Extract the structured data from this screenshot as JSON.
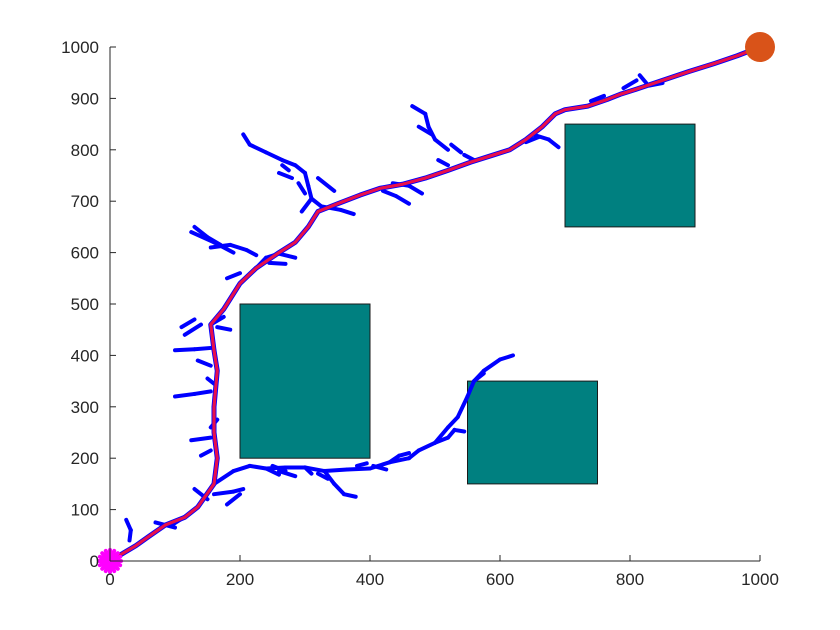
{
  "chart_data": {
    "type": "scatter",
    "title": "",
    "xlabel": "",
    "ylabel": "",
    "xlim": [
      0,
      1000
    ],
    "ylim": [
      0,
      1000
    ],
    "x_ticks": [
      0,
      200,
      400,
      600,
      800,
      1000
    ],
    "y_ticks": [
      0,
      100,
      200,
      300,
      400,
      500,
      600,
      700,
      800,
      900,
      1000
    ],
    "grid": false,
    "colors": {
      "tree": "#0000ff",
      "path": "#e8104a",
      "obstacle": "#008080",
      "start": "#ff00ff",
      "goal": "#d95319"
    },
    "start": [
      0,
      0
    ],
    "goal": [
      1000,
      1000
    ],
    "obstacles": [
      {
        "x": 200,
        "y": 200,
        "width": 200,
        "height": 300
      },
      {
        "x": 550,
        "y": 150,
        "width": 200,
        "height": 200
      },
      {
        "x": 700,
        "y": 650,
        "width": 200,
        "height": 200
      }
    ],
    "path": [
      [
        0,
        0
      ],
      [
        20,
        15
      ],
      [
        40,
        30
      ],
      [
        60,
        48
      ],
      [
        85,
        70
      ],
      [
        115,
        85
      ],
      [
        135,
        105
      ],
      [
        160,
        150
      ],
      [
        165,
        200
      ],
      [
        160,
        250
      ],
      [
        160,
        300
      ],
      [
        165,
        370
      ],
      [
        160,
        410
      ],
      [
        155,
        460
      ],
      [
        175,
        490
      ],
      [
        200,
        540
      ],
      [
        225,
        570
      ],
      [
        260,
        600
      ],
      [
        285,
        620
      ],
      [
        305,
        650
      ],
      [
        320,
        680
      ],
      [
        350,
        695
      ],
      [
        385,
        712
      ],
      [
        415,
        725
      ],
      [
        450,
        733
      ],
      [
        485,
        745
      ],
      [
        520,
        760
      ],
      [
        555,
        776
      ],
      [
        590,
        790
      ],
      [
        615,
        800
      ],
      [
        640,
        820
      ],
      [
        665,
        845
      ],
      [
        685,
        870
      ],
      [
        700,
        878
      ],
      [
        735,
        885
      ],
      [
        765,
        898
      ],
      [
        785,
        908
      ],
      [
        810,
        918
      ],
      [
        850,
        935
      ],
      [
        890,
        952
      ],
      [
        930,
        968
      ],
      [
        965,
        983
      ],
      [
        1000,
        1000
      ]
    ],
    "tree_edges": [
      [
        [
          25,
          80
        ],
        [
          32,
          60
        ]
      ],
      [
        [
          32,
          60
        ],
        [
          30,
          40
        ]
      ],
      [
        [
          70,
          75
        ],
        [
          100,
          65
        ]
      ],
      [
        [
          95,
          70
        ],
        [
          120,
          90
        ]
      ],
      [
        [
          130,
          140
        ],
        [
          150,
          120
        ]
      ],
      [
        [
          160,
          130
        ],
        [
          190,
          135
        ]
      ],
      [
        [
          190,
          135
        ],
        [
          205,
          140
        ]
      ],
      [
        [
          180,
          110
        ],
        [
          200,
          130
        ]
      ],
      [
        [
          160,
          150
        ],
        [
          190,
          175
        ]
      ],
      [
        [
          190,
          175
        ],
        [
          215,
          185
        ]
      ],
      [
        [
          215,
          185
        ],
        [
          240,
          180
        ]
      ],
      [
        [
          240,
          180
        ],
        [
          270,
          182
        ]
      ],
      [
        [
          270,
          182
        ],
        [
          300,
          182
        ]
      ],
      [
        [
          300,
          182
        ],
        [
          330,
          175
        ]
      ],
      [
        [
          330,
          175
        ],
        [
          365,
          178
        ]
      ],
      [
        [
          365,
          178
        ],
        [
          400,
          180
        ]
      ],
      [
        [
          400,
          180
        ],
        [
          430,
          192
        ]
      ],
      [
        [
          430,
          192
        ],
        [
          460,
          200
        ]
      ],
      [
        [
          460,
          200
        ],
        [
          475,
          215
        ]
      ],
      [
        [
          475,
          215
        ],
        [
          500,
          230
        ]
      ],
      [
        [
          500,
          230
        ],
        [
          520,
          240
        ]
      ],
      [
        [
          520,
          240
        ],
        [
          530,
          255
        ]
      ],
      [
        [
          530,
          255
        ],
        [
          545,
          252
        ]
      ],
      [
        [
          500,
          230
        ],
        [
          520,
          260
        ]
      ],
      [
        [
          520,
          260
        ],
        [
          535,
          280
        ]
      ],
      [
        [
          535,
          280
        ],
        [
          550,
          320
        ]
      ],
      [
        [
          550,
          320
        ],
        [
          560,
          350
        ]
      ],
      [
        [
          560,
          350
        ],
        [
          575,
          370
        ]
      ],
      [
        [
          575,
          370
        ],
        [
          600,
          392
        ]
      ],
      [
        [
          600,
          392
        ],
        [
          620,
          400
        ]
      ],
      [
        [
          560,
          350
        ],
        [
          575,
          365
        ]
      ],
      [
        [
          250,
          185
        ],
        [
          270,
          175
        ]
      ],
      [
        [
          260,
          175
        ],
        [
          285,
          165
        ]
      ],
      [
        [
          320,
          170
        ],
        [
          335,
          160
        ]
      ],
      [
        [
          330,
          175
        ],
        [
          345,
          150
        ]
      ],
      [
        [
          345,
          150
        ],
        [
          360,
          130
        ]
      ],
      [
        [
          360,
          130
        ],
        [
          378,
          125
        ]
      ],
      [
        [
          380,
          185
        ],
        [
          395,
          190
        ]
      ],
      [
        [
          430,
          192
        ],
        [
          445,
          205
        ]
      ],
      [
        [
          445,
          205
        ],
        [
          460,
          210
        ]
      ],
      [
        [
          405,
          185
        ],
        [
          425,
          178
        ]
      ],
      [
        [
          240,
          180
        ],
        [
          260,
          168
        ]
      ],
      [
        [
          300,
          182
        ],
        [
          310,
          170
        ]
      ],
      [
        [
          100,
          320
        ],
        [
          130,
          325
        ]
      ],
      [
        [
          130,
          325
        ],
        [
          155,
          330
        ]
      ],
      [
        [
          100,
          410
        ],
        [
          130,
          412
        ]
      ],
      [
        [
          130,
          412
        ],
        [
          160,
          415
        ]
      ],
      [
        [
          115,
          440
        ],
        [
          140,
          460
        ]
      ],
      [
        [
          110,
          455
        ],
        [
          130,
          470
        ]
      ],
      [
        [
          135,
          390
        ],
        [
          155,
          380
        ]
      ],
      [
        [
          150,
          355
        ],
        [
          160,
          345
        ]
      ],
      [
        [
          125,
          235
        ],
        [
          155,
          240
        ]
      ],
      [
        [
          140,
          205
        ],
        [
          155,
          215
        ]
      ],
      [
        [
          155,
          260
        ],
        [
          165,
          275
        ]
      ],
      [
        [
          155,
          460
        ],
        [
          175,
          475
        ]
      ],
      [
        [
          165,
          455
        ],
        [
          185,
          450
        ]
      ],
      [
        [
          130,
          650
        ],
        [
          150,
          630
        ]
      ],
      [
        [
          150,
          630
        ],
        [
          170,
          615
        ]
      ],
      [
        [
          125,
          640
        ],
        [
          160,
          620
        ]
      ],
      [
        [
          160,
          620
        ],
        [
          190,
          600
        ]
      ],
      [
        [
          155,
          610
        ],
        [
          185,
          615
        ]
      ],
      [
        [
          185,
          615
        ],
        [
          210,
          605
        ]
      ],
      [
        [
          210,
          605
        ],
        [
          225,
          595
        ]
      ],
      [
        [
          180,
          550
        ],
        [
          200,
          560
        ]
      ],
      [
        [
          225,
          570
        ],
        [
          240,
          590
        ]
      ],
      [
        [
          240,
          590
        ],
        [
          260,
          598
        ]
      ],
      [
        [
          260,
          598
        ],
        [
          285,
          590
        ]
      ],
      [
        [
          245,
          580
        ],
        [
          270,
          578
        ]
      ],
      [
        [
          205,
          830
        ],
        [
          215,
          810
        ]
      ],
      [
        [
          215,
          810
        ],
        [
          240,
          795
        ]
      ],
      [
        [
          240,
          795
        ],
        [
          265,
          780
        ]
      ],
      [
        [
          265,
          780
        ],
        [
          285,
          770
        ]
      ],
      [
        [
          285,
          770
        ],
        [
          300,
          755
        ]
      ],
      [
        [
          300,
          755
        ],
        [
          305,
          730
        ]
      ],
      [
        [
          305,
          730
        ],
        [
          310,
          705
        ]
      ],
      [
        [
          310,
          705
        ],
        [
          295,
          680
        ]
      ],
      [
        [
          260,
          755
        ],
        [
          280,
          745
        ]
      ],
      [
        [
          265,
          770
        ],
        [
          275,
          760
        ]
      ],
      [
        [
          290,
          735
        ],
        [
          300,
          715
        ]
      ],
      [
        [
          320,
          745
        ],
        [
          345,
          720
        ]
      ],
      [
        [
          310,
          705
        ],
        [
          325,
          690
        ]
      ],
      [
        [
          325,
          690
        ],
        [
          355,
          683
        ]
      ],
      [
        [
          355,
          683
        ],
        [
          375,
          675
        ]
      ],
      [
        [
          420,
          720
        ],
        [
          440,
          710
        ]
      ],
      [
        [
          440,
          710
        ],
        [
          460,
          695
        ]
      ],
      [
        [
          435,
          735
        ],
        [
          460,
          730
        ]
      ],
      [
        [
          460,
          730
        ],
        [
          480,
          715
        ]
      ],
      [
        [
          465,
          885
        ],
        [
          485,
          870
        ]
      ],
      [
        [
          485,
          870
        ],
        [
          490,
          845
        ]
      ],
      [
        [
          490,
          845
        ],
        [
          500,
          820
        ]
      ],
      [
        [
          500,
          820
        ],
        [
          520,
          800
        ]
      ],
      [
        [
          475,
          845
        ],
        [
          495,
          830
        ]
      ],
      [
        [
          525,
          810
        ],
        [
          540,
          795
        ]
      ],
      [
        [
          545,
          790
        ],
        [
          560,
          780
        ]
      ],
      [
        [
          505,
          780
        ],
        [
          520,
          770
        ]
      ],
      [
        [
          650,
          830
        ],
        [
          675,
          820
        ]
      ],
      [
        [
          675,
          820
        ],
        [
          690,
          805
        ]
      ],
      [
        [
          640,
          815
        ],
        [
          660,
          825
        ]
      ],
      [
        [
          740,
          895
        ],
        [
          760,
          905
        ]
      ],
      [
        [
          790,
          920
        ],
        [
          810,
          935
        ]
      ],
      [
        [
          815,
          945
        ],
        [
          825,
          930
        ]
      ],
      [
        [
          830,
          925
        ],
        [
          850,
          930
        ]
      ]
    ]
  }
}
